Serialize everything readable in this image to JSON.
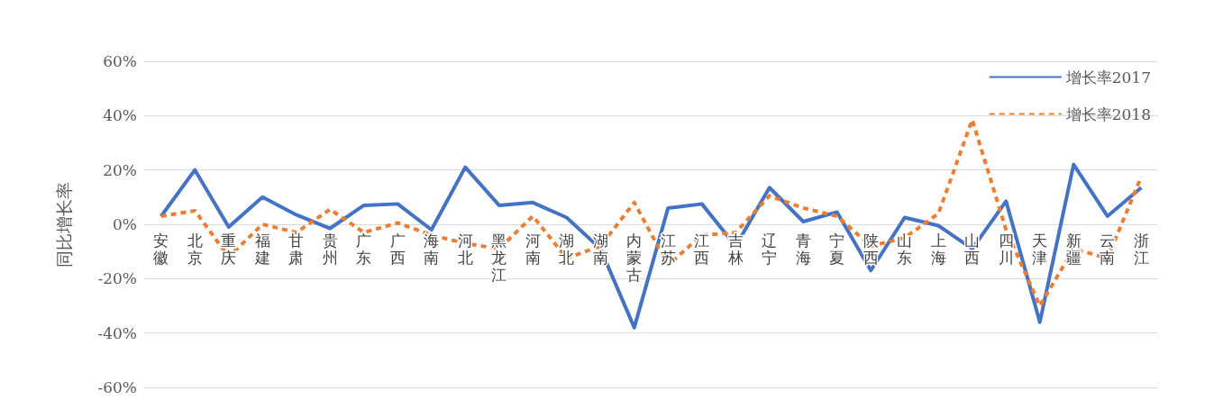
{
  "chart_data": {
    "type": "line",
    "ylabel": "同比增长率",
    "categories": [
      "安徽",
      "北京",
      "重庆",
      "福建",
      "甘肃",
      "贵州",
      "广东",
      "广西",
      "海南",
      "河北",
      "黑龙江",
      "河南",
      "湖北",
      "湖南",
      "内蒙古",
      "江苏",
      "江西",
      "吉林",
      "辽宁",
      "青海",
      "宁夏",
      "陕西",
      "山东",
      "上海",
      "山西",
      "四川",
      "天津",
      "新疆",
      "云南",
      "浙江"
    ],
    "series": [
      {
        "name": "增长率2017",
        "color": "#4472c4",
        "line_style": "solid",
        "values": [
          3,
          20,
          -1,
          10,
          3.5,
          -1.5,
          7,
          7.5,
          -2,
          21,
          7,
          8,
          2.5,
          -9,
          -38,
          6,
          7.5,
          -8,
          13.5,
          1,
          4.5,
          -17,
          2.5,
          -0.5,
          -9,
          8.5,
          -36,
          22,
          3,
          13.5
        ]
      },
      {
        "name": "增长率2018",
        "color": "#ed7d31",
        "line_style": "dashed",
        "values": [
          3,
          5,
          -12,
          0,
          -3,
          5.5,
          -3,
          0.5,
          -4,
          -7,
          -9,
          3,
          -12.5,
          -8,
          8,
          -15,
          -4,
          -3,
          10.5,
          6,
          3,
          -8,
          -5,
          4,
          38.5,
          -2,
          -30,
          -9,
          -12.5,
          17.5
        ]
      }
    ],
    "ylim": [
      -60,
      60
    ],
    "yticks": [
      {
        "value": -60,
        "label": "-60%"
      },
      {
        "value": -40,
        "label": "-40%"
      },
      {
        "value": -20,
        "label": "-20%"
      },
      {
        "value": 0,
        "label": "0%"
      },
      {
        "value": 20,
        "label": "20%"
      },
      {
        "value": 40,
        "label": "40%"
      },
      {
        "value": 60,
        "label": "60%"
      }
    ],
    "grid": "y",
    "legend": "top right",
    "marker": "none"
  }
}
